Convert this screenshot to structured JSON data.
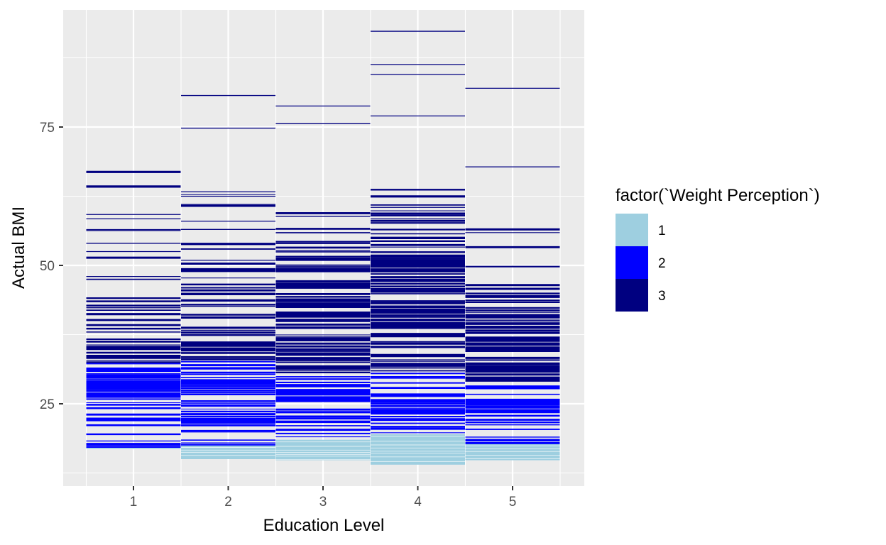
{
  "chart_data": {
    "type": "heatmap",
    "title": "",
    "xlabel": "Education Level",
    "ylabel": "Actual BMI",
    "categories": [
      "1",
      "2",
      "3",
      "4",
      "5"
    ],
    "ylim": [
      10,
      97
    ],
    "yticks": [
      25,
      50,
      75
    ],
    "grid": true,
    "legend": {
      "title": "factor(`Weight Perception`)",
      "position": "right",
      "entries": [
        {
          "label": "1",
          "color": "#9ecfe0"
        },
        {
          "label": "2",
          "color": "#0000ff"
        },
        {
          "label": "3",
          "color": "#000080"
        }
      ]
    },
    "series": [
      {
        "education": "1",
        "segments": [
          {
            "from": 16.8,
            "to": 17.2,
            "perception": 1
          },
          {
            "from": 17.2,
            "to": 20.5,
            "perception": 2,
            "density": 0.35
          },
          {
            "from": 20.5,
            "to": 32.5,
            "perception": 2,
            "density": 0.8
          },
          {
            "from": 32.5,
            "to": 38.0,
            "perception": 3,
            "density": 0.8
          },
          {
            "from": 38.0,
            "to": 45.0,
            "perception": 3,
            "density": 0.35
          },
          {
            "from": 45.0,
            "to": 67.0,
            "perception": 3,
            "density": 0.07
          }
        ],
        "outliers": [
          48.0,
          51.5,
          52.5,
          54.0,
          56.3,
          59.2,
          67.0
        ]
      },
      {
        "education": "2",
        "segments": [
          {
            "from": 15.0,
            "to": 17.5,
            "perception": 1
          },
          {
            "from": 17.5,
            "to": 21.0,
            "perception": 2,
            "density": 0.4
          },
          {
            "from": 21.0,
            "to": 33.0,
            "perception": 2,
            "density": 0.85
          },
          {
            "from": 33.0,
            "to": 38.5,
            "perception": 3,
            "density": 0.8
          },
          {
            "from": 38.5,
            "to": 51.0,
            "perception": 3,
            "density": 0.35
          },
          {
            "from": 51.0,
            "to": 63.5,
            "perception": 3,
            "density": 0.08
          }
        ],
        "outliers": [
          54.0,
          56.5,
          58.0,
          61.0,
          62.5,
          63.3,
          74.8,
          80.7
        ]
      },
      {
        "education": "3",
        "segments": [
          {
            "from": 14.8,
            "to": 18.5,
            "perception": 1
          },
          {
            "from": 18.5,
            "to": 22.0,
            "perception": 2,
            "density": 0.5
          },
          {
            "from": 22.0,
            "to": 30.0,
            "perception": 2,
            "density": 0.85
          },
          {
            "from": 30.0,
            "to": 46.0,
            "perception": 3,
            "density": 0.92
          },
          {
            "from": 46.0,
            "to": 56.0,
            "perception": 3,
            "density": 0.6
          },
          {
            "from": 56.0,
            "to": 62.0,
            "perception": 3,
            "density": 0.12
          }
        ],
        "outliers": [
          75.6,
          78.8
        ]
      },
      {
        "education": "4",
        "segments": [
          {
            "from": 14.0,
            "to": 19.5,
            "perception": 1
          },
          {
            "from": 19.5,
            "to": 23.0,
            "perception": 2,
            "density": 0.6
          },
          {
            "from": 23.0,
            "to": 30.5,
            "perception": 2,
            "density": 0.9
          },
          {
            "from": 30.5,
            "to": 51.5,
            "perception": 3,
            "density": 0.95
          },
          {
            "from": 51.5,
            "to": 60.0,
            "perception": 3,
            "density": 0.5
          },
          {
            "from": 60.0,
            "to": 68.5,
            "perception": 3,
            "density": 0.14
          }
        ],
        "outliers": [
          77.0,
          84.5,
          86.3,
          92.3
        ]
      },
      {
        "education": "5",
        "segments": [
          {
            "from": 14.8,
            "to": 17.8,
            "perception": 1
          },
          {
            "from": 17.8,
            "to": 21.0,
            "perception": 2,
            "density": 0.5
          },
          {
            "from": 21.0,
            "to": 28.5,
            "perception": 2,
            "density": 0.85
          },
          {
            "from": 28.5,
            "to": 45.8,
            "perception": 3,
            "density": 0.95
          },
          {
            "from": 45.8,
            "to": 61.5,
            "perception": 3,
            "density": 0.09
          }
        ],
        "outliers": [
          67.8,
          82.0
        ]
      }
    ]
  }
}
